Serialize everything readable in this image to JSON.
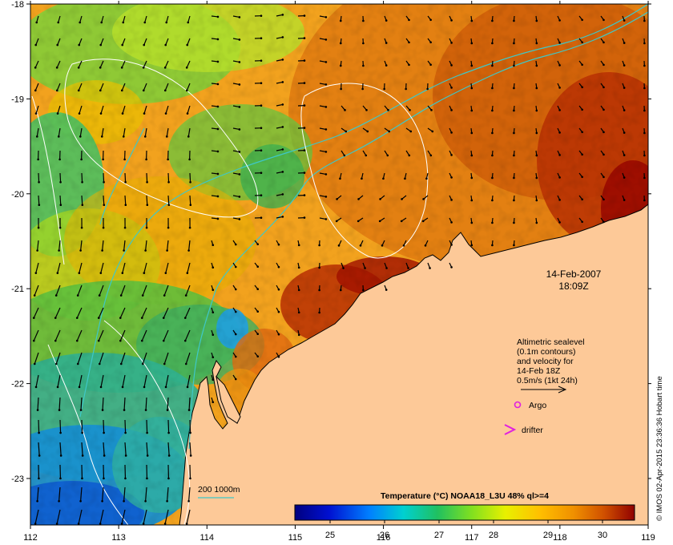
{
  "map": {
    "longitude_ticks": [
      "112",
      "113",
      "114",
      "115",
      "116",
      "117",
      "118",
      "119"
    ],
    "latitude_ticks": [
      "-18",
      "-19",
      "-20",
      "-21",
      "-22",
      "-23"
    ],
    "date": "14-Feb-2007",
    "time": "18:09Z",
    "legend_lines": [
      "Altimetric sealevel",
      "(0.1m contours)",
      "and velocity for",
      "14-Feb 18Z",
      "0.5m/s (1kt 24h)"
    ],
    "argo_label": "Argo",
    "drifter_label": "drifter",
    "isobath_label": "200  1000m",
    "colorbar_title": "Temperature (°C) NOAA18_L3U 48% ql>=4",
    "colorbar_ticks": [
      "25",
      "26",
      "27",
      "28",
      "29",
      "30"
    ],
    "credit": "© IMOS 02-Apr-2015 23:36:36 Hobart time",
    "colors": {
      "land": "#fdc998",
      "isobath": "#3ec8c8",
      "contour": "#ffffff",
      "argo": "#e020e0",
      "drifter": "#e020e0"
    }
  }
}
